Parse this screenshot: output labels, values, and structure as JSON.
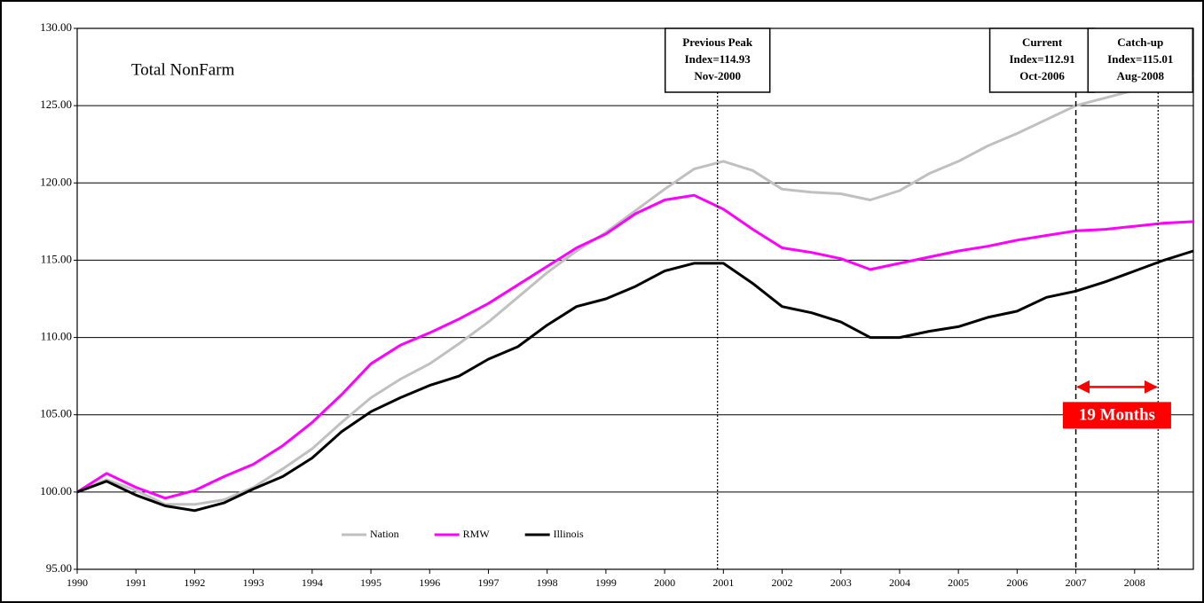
{
  "chart_data": {
    "type": "line",
    "title": "Total NonFarm",
    "x": [
      1990,
      1990.5,
      1991,
      1991.5,
      1992,
      1992.5,
      1993,
      1993.5,
      1994,
      1994.5,
      1995,
      1995.5,
      1996,
      1996.5,
      1997,
      1997.5,
      1998,
      1998.5,
      1999,
      1999.5,
      2000,
      2000.5,
      2001,
      2001.5,
      2002,
      2002.5,
      2003,
      2003.5,
      2004,
      2004.5,
      2005,
      2005.5,
      2006,
      2006.5,
      2007,
      2007.5,
      2008,
      2008.5,
      2009
    ],
    "series": [
      {
        "name": "Nation",
        "color": "#c0c0c0",
        "values": [
          100,
          100.8,
          100.1,
          99.2,
          99.2,
          99.5,
          100.3,
          101.5,
          102.8,
          104.5,
          106.1,
          107.3,
          108.3,
          109.6,
          111.0,
          112.6,
          114.2,
          115.6,
          116.8,
          118.2,
          119.6,
          120.9,
          121.4,
          120.8,
          119.6,
          119.4,
          119.3,
          118.9,
          119.5,
          120.6,
          121.4,
          122.4,
          123.2,
          124.1,
          125.0,
          125.5,
          126.0,
          126.5,
          127.0
        ]
      },
      {
        "name": "RMW",
        "color": "#ff00ff",
        "values": [
          100,
          101.2,
          100.3,
          99.6,
          100.1,
          101.0,
          101.8,
          103.0,
          104.5,
          106.3,
          108.3,
          109.5,
          110.3,
          111.2,
          112.2,
          113.4,
          114.6,
          115.8,
          116.7,
          118.0,
          118.9,
          119.2,
          118.3,
          117.0,
          115.8,
          115.5,
          115.1,
          114.4,
          114.8,
          115.2,
          115.6,
          115.9,
          116.3,
          116.6,
          116.9,
          117.0,
          117.2,
          117.4,
          117.5
        ]
      },
      {
        "name": "Illinois",
        "color": "#000000",
        "values": [
          100,
          100.7,
          99.8,
          99.1,
          98.8,
          99.3,
          100.2,
          101.0,
          102.2,
          103.9,
          105.2,
          106.1,
          106.9,
          107.5,
          108.6,
          109.4,
          110.8,
          112.0,
          112.5,
          113.3,
          114.3,
          114.8,
          114.8,
          113.5,
          112.0,
          111.6,
          111.0,
          110.0,
          110.0,
          110.4,
          110.7,
          111.3,
          111.7,
          112.6,
          113.0,
          113.6,
          114.3,
          115.0,
          115.6
        ]
      }
    ],
    "xlim": [
      1990,
      2009
    ],
    "xticks": [
      1990,
      1991,
      1992,
      1993,
      1994,
      1995,
      1996,
      1997,
      1998,
      1999,
      2000,
      2001,
      2002,
      2003,
      2004,
      2005,
      2006,
      2007,
      2008
    ],
    "ylim": [
      95,
      130
    ],
    "yticks": [
      {
        "value": 95,
        "label": "95.00"
      },
      {
        "value": 100,
        "label": "100.00"
      },
      {
        "value": 105,
        "label": "105.00"
      },
      {
        "value": 110,
        "label": "110.00"
      },
      {
        "value": 115,
        "label": "115.00"
      },
      {
        "value": 120,
        "label": "120.00"
      },
      {
        "value": 125,
        "label": "125.00"
      },
      {
        "value": 130,
        "label": "130.00"
      }
    ],
    "grid": true,
    "legend": "lower center",
    "annotations": [
      {
        "x": 2000.9,
        "style": "dotted",
        "lines": [
          "Previous Peak",
          "Index=114.93",
          "Nov-2000"
        ]
      },
      {
        "x": 2007.0,
        "style": "dashed",
        "lines": [
          "Current",
          "Index=112.91",
          "Oct-2006"
        ]
      },
      {
        "x": 2008.4,
        "style": "dotted",
        "lines": [
          "Catch-up",
          "Index=115.01",
          "Aug-2008"
        ]
      }
    ],
    "span": {
      "label": "19 Months",
      "y": 106.8,
      "color": "#ff0000"
    }
  }
}
